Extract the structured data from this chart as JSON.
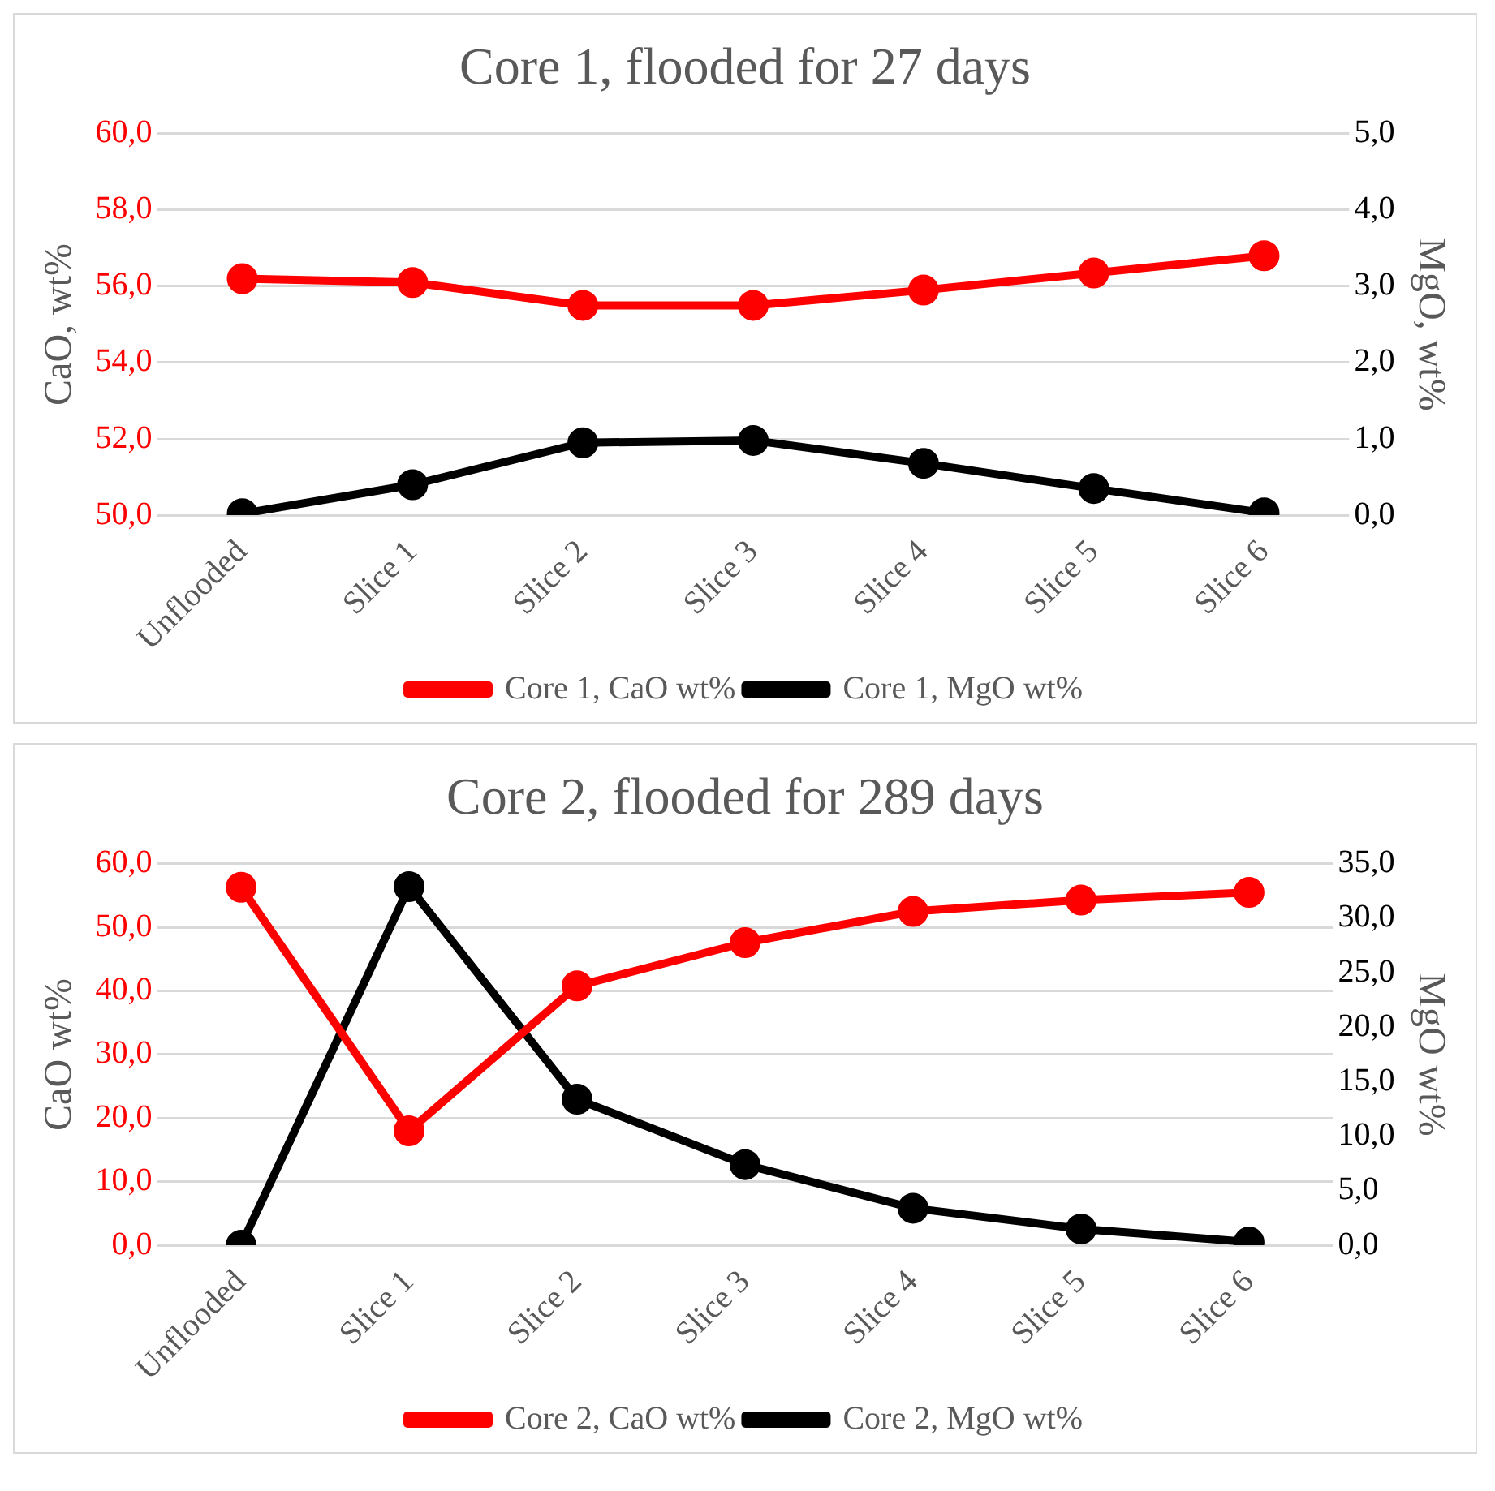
{
  "chart_data": [
    {
      "type": "line",
      "title": "Core 1, flooded for 27 days",
      "ylabel": "CaO, wt%",
      "y2label": "MgO, wt%",
      "categories": [
        "Unflooded",
        "Slice 1",
        "Slice 2",
        "Slice 3",
        "Slice 4",
        "Slice 5",
        "Slice 6"
      ],
      "series": [
        {
          "name": "Core 1, CaO wt%",
          "color": "#ff0000",
          "values": [
            56.2,
            56.1,
            55.5,
            55.5,
            55.9,
            56.35,
            56.8
          ]
        },
        {
          "name": "Core 1, MgO wt%",
          "color": "#000000",
          "axis": "y2",
          "values": [
            0.02,
            0.4,
            0.95,
            0.98,
            0.68,
            0.35,
            0.03
          ]
        }
      ],
      "ylim": [
        50,
        60
      ],
      "yticks": [
        {
          "value": 50,
          "label": "50,0"
        },
        {
          "value": 52,
          "label": "52,0"
        },
        {
          "value": 54,
          "label": "54,0"
        },
        {
          "value": 56,
          "label": "56,0"
        },
        {
          "value": 58,
          "label": "58,0"
        },
        {
          "value": 60,
          "label": "60,0"
        }
      ],
      "y2lim": [
        0,
        5
      ],
      "y2ticks": [
        {
          "value": 0,
          "label": "0,0"
        },
        {
          "value": 1,
          "label": "1,0"
        },
        {
          "value": 2,
          "label": "2,0"
        },
        {
          "value": 3,
          "label": "3,0"
        },
        {
          "value": 4,
          "label": "4,0"
        },
        {
          "value": 5,
          "label": "5,0"
        }
      ],
      "grid": "y",
      "legend": "bottom",
      "marker": "circle",
      "line_style": "solid"
    },
    {
      "type": "line",
      "title": "Core 2, flooded for 289 days",
      "ylabel": "CaO wt%",
      "y2label": "MgO wt%",
      "categories": [
        "Unflooded",
        "Slice 1",
        "Slice 2",
        "Slice 3",
        "Slice 4",
        "Slice 5",
        "Slice 6"
      ],
      "series": [
        {
          "name": "Core 2, CaO wt%",
          "color": "#ff0000",
          "values": [
            56.3,
            18.0,
            40.8,
            47.6,
            52.5,
            54.3,
            55.5
          ]
        },
        {
          "name": "Core 2, MgO wt%",
          "color": "#000000",
          "axis": "y2",
          "values": [
            0,
            32.9,
            13.4,
            7.4,
            3.4,
            1.5,
            0.3
          ]
        }
      ],
      "ylim": [
        0,
        60
      ],
      "yticks": [
        {
          "value": 0,
          "label": "0,0"
        },
        {
          "value": 10,
          "label": "10,0"
        },
        {
          "value": 20,
          "label": "20,0"
        },
        {
          "value": 30,
          "label": "30,0"
        },
        {
          "value": 40,
          "label": "40,0"
        },
        {
          "value": 50,
          "label": "50,0"
        },
        {
          "value": 60,
          "label": "60,0"
        }
      ],
      "y2lim": [
        0,
        35
      ],
      "y2ticks": [
        {
          "value": 0,
          "label": "0,0"
        },
        {
          "value": 5,
          "label": "5,0"
        },
        {
          "value": 10,
          "label": "10,0"
        },
        {
          "value": 15,
          "label": "15,0"
        },
        {
          "value": 20,
          "label": "20,0"
        },
        {
          "value": 25,
          "label": "25,0"
        },
        {
          "value": 30,
          "label": "30,0"
        },
        {
          "value": 35,
          "label": "35,0"
        }
      ],
      "grid": "y",
      "legend": "bottom",
      "marker": "circle",
      "line_style": "solid"
    }
  ]
}
